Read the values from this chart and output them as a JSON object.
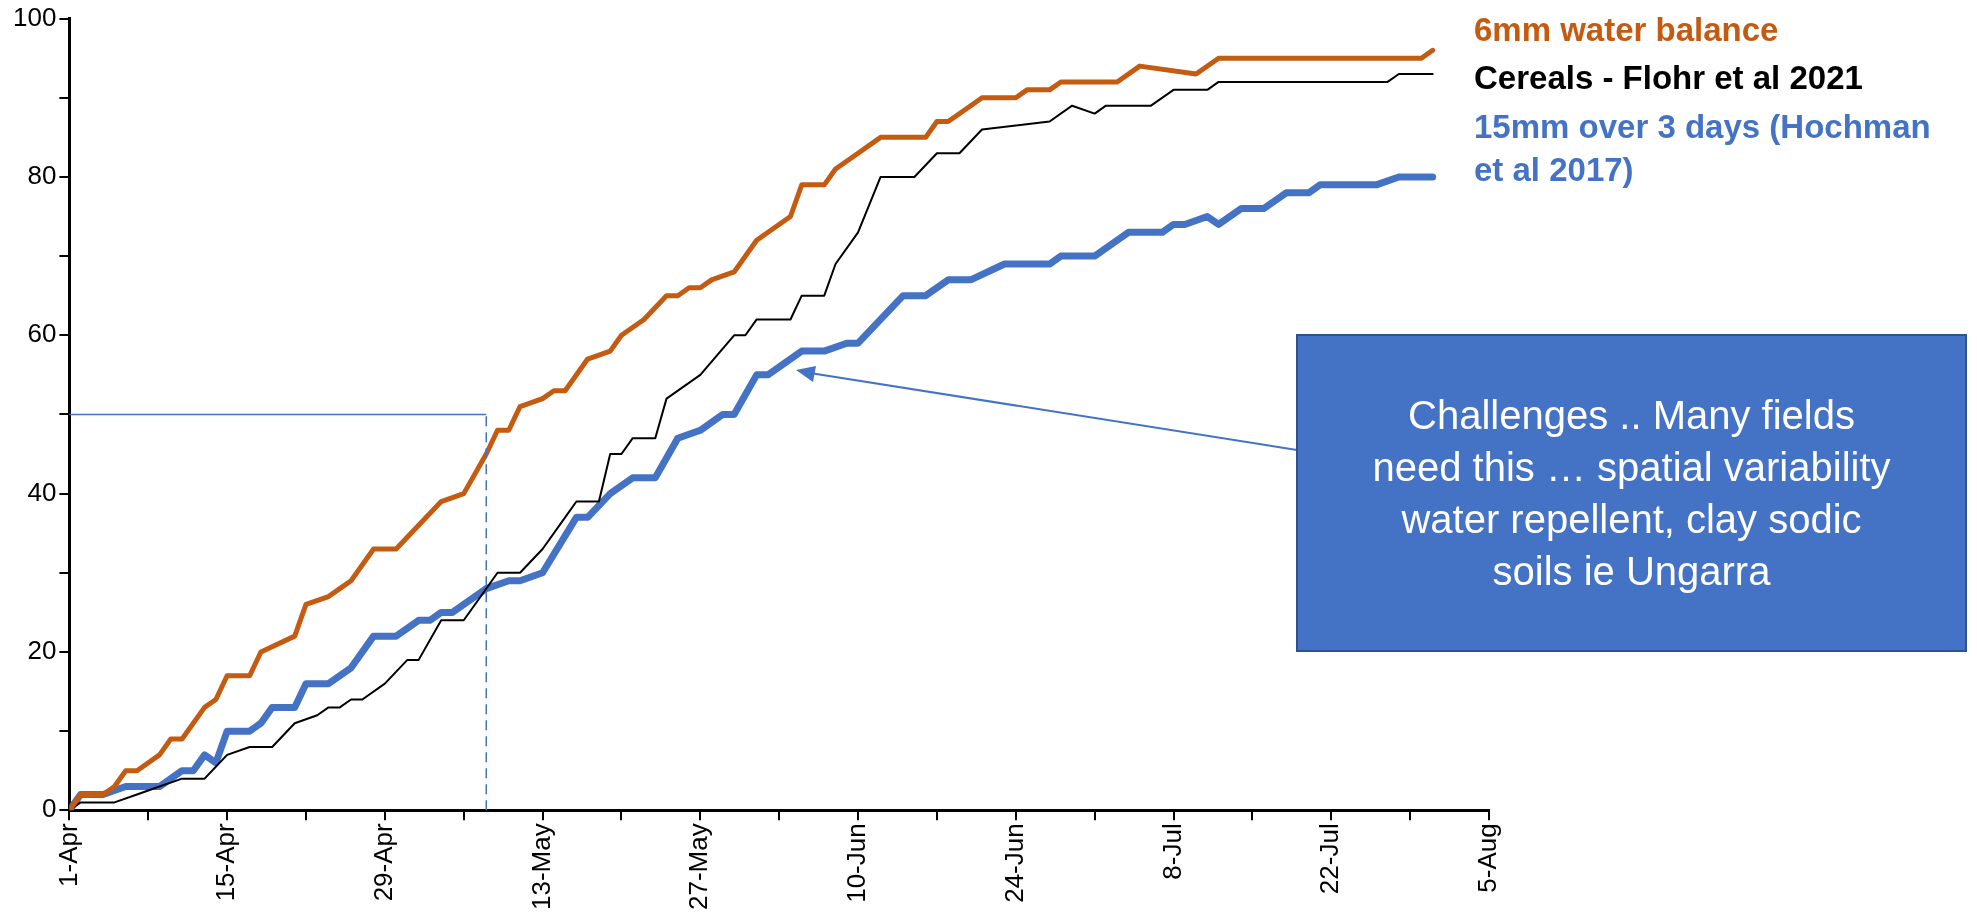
{
  "chart_data": {
    "type": "line",
    "xlim": [
      "--04-01",
      "--08-05"
    ],
    "xticks": [
      {
        "value": "--04-01",
        "label": "1-Apr"
      },
      {
        "value": "--04-08",
        "label": null
      },
      {
        "value": "--04-15",
        "label": "15-Apr"
      },
      {
        "value": "--04-22",
        "label": null
      },
      {
        "value": "--04-29",
        "label": "29-Apr"
      },
      {
        "value": "--05-06",
        "label": null
      },
      {
        "value": "--05-13",
        "label": "13-May"
      },
      {
        "value": "--05-20",
        "label": null
      },
      {
        "value": "--05-27",
        "label": "27-May"
      },
      {
        "value": "--06-03",
        "label": null
      },
      {
        "value": "--06-10",
        "label": "10-Jun"
      },
      {
        "value": "--06-17",
        "label": null
      },
      {
        "value": "--06-24",
        "label": "24-Jun"
      },
      {
        "value": "--07-01",
        "label": null
      },
      {
        "value": "--07-08",
        "label": "8-Jul"
      },
      {
        "value": "--07-15",
        "label": null
      },
      {
        "value": "--07-22",
        "label": "22-Jul"
      },
      {
        "value": "--07-29",
        "label": null
      },
      {
        "value": "--08-05",
        "label": "5-Aug"
      }
    ],
    "ylim": [
      0,
      100
    ],
    "yticks": [
      0,
      {
        "value": 10,
        "label": null
      },
      20,
      {
        "value": 30,
        "label": null
      },
      40,
      {
        "value": 50,
        "label": null
      },
      60,
      {
        "value": 70,
        "label": null
      },
      80,
      {
        "value": 90,
        "label": null
      },
      100
    ],
    "grid": false,
    "legend": "top right",
    "series": [
      {
        "name": "6mm water balance",
        "color": "#c55a11",
        "x": [
          "--04-01",
          "--04-02",
          "--04-04",
          "--04-05",
          "--04-06",
          "--04-07",
          "--04-09",
          "--04-10",
          "--04-11",
          "--04-13",
          "--04-14",
          "--04-15",
          "--04-17",
          "--04-18",
          "--04-21",
          "--04-22",
          "--04-24",
          "--04-25",
          "--04-26",
          "--04-28",
          "--04-30",
          "--05-02",
          "--05-04",
          "--05-06",
          "--05-08",
          "--05-09",
          "--05-10",
          "--05-11",
          "--05-13",
          "--05-14",
          "--05-15",
          "--05-17",
          "--05-19",
          "--05-20",
          "--05-22",
          "--05-24",
          "--05-25",
          "--05-26",
          "--05-27",
          "--05-28",
          "--05-30",
          "--06-01",
          "--06-04",
          "--06-05",
          "--06-07",
          "--06-08",
          "--06-10",
          "--06-12",
          "--06-16",
          "--06-17",
          "--06-18",
          "--06-20",
          "--06-21",
          "--06-24",
          "--06-25",
          "--06-27",
          "--06-28",
          "--07-03",
          "--07-05",
          "--07-10",
          "--07-12",
          "--07-30",
          "--07-31"
        ],
        "values": [
          0,
          2,
          2,
          3,
          5,
          5,
          7,
          9,
          9,
          13,
          14,
          17,
          17,
          20,
          22,
          26,
          27,
          28,
          29,
          33,
          33,
          36,
          39,
          40,
          45,
          48,
          48,
          51,
          52,
          53,
          53,
          57,
          58,
          60,
          62,
          65,
          65,
          66,
          66,
          67,
          68,
          72,
          75,
          79,
          79,
          81,
          83,
          85,
          85,
          87,
          87,
          89,
          90,
          90,
          91,
          91,
          92,
          92,
          94,
          93,
          95,
          95,
          96
        ]
      },
      {
        "name": "Cereals - Flohr et al 2021",
        "color": "#000000",
        "x": [
          "--04-01",
          "--04-02",
          "--04-05",
          "--04-07",
          "--04-09",
          "--04-11",
          "--04-13",
          "--04-15",
          "--04-17",
          "--04-19",
          "--04-21",
          "--04-23",
          "--04-24",
          "--04-25",
          "--04-26",
          "--04-27",
          "--04-29",
          "--05-01",
          "--05-02",
          "--05-04",
          "--05-06",
          "--05-07",
          "--05-09",
          "--05-11",
          "--05-13",
          "--05-15",
          "--05-16",
          "--05-18",
          "--05-19",
          "--05-20",
          "--05-21",
          "--05-23",
          "--05-24",
          "--05-27",
          "--05-30",
          "--05-31",
          "--06-01",
          "--06-04",
          "--06-05",
          "--06-07",
          "--06-08",
          "--06-10",
          "--06-12",
          "--06-15",
          "--06-17",
          "--06-19",
          "--06-21",
          "--06-27",
          "--06-29",
          "--07-01",
          "--07-02",
          "--07-06",
          "--07-08",
          "--07-11",
          "--07-12",
          "--07-27",
          "--07-28",
          "--07-31"
        ],
        "values": [
          0,
          1,
          1,
          2,
          3,
          4,
          4,
          7,
          8,
          8,
          11,
          12,
          13,
          13,
          14,
          14,
          16,
          19,
          19,
          24,
          24,
          26,
          30,
          30,
          33,
          37,
          39,
          39,
          45,
          45,
          47,
          47,
          52,
          55,
          60,
          60,
          62,
          62,
          65,
          65,
          69,
          73,
          80,
          80,
          83,
          83,
          86,
          87,
          89,
          88,
          89,
          89,
          91,
          91,
          92,
          92,
          93,
          93
        ]
      },
      {
        "name": "15mm over 3 days (Hochman et al 2017)",
        "color": "#4472c4",
        "x": [
          "--04-01",
          "--04-02",
          "--04-04",
          "--04-06",
          "--04-09",
          "--04-11",
          "--04-12",
          "--04-13",
          "--04-14",
          "--04-15",
          "--04-17",
          "--04-18",
          "--04-19",
          "--04-21",
          "--04-22",
          "--04-24",
          "--04-26",
          "--04-28",
          "--04-30",
          "--05-02",
          "--05-03",
          "--05-04",
          "--05-05",
          "--05-08",
          "--05-10",
          "--05-11",
          "--05-13",
          "--05-16",
          "--05-17",
          "--05-19",
          "--05-21",
          "--05-23",
          "--05-25",
          "--05-27",
          "--05-29",
          "--05-30",
          "--06-01",
          "--06-02",
          "--06-05",
          "--06-07",
          "--06-09",
          "--06-10",
          "--06-12",
          "--06-14",
          "--06-16",
          "--06-18",
          "--06-20",
          "--06-23",
          "--06-27",
          "--06-28",
          "--07-01",
          "--07-04",
          "--07-07",
          "--07-08",
          "--07-09",
          "--07-11",
          "--07-12",
          "--07-14",
          "--07-16",
          "--07-18",
          "--07-20",
          "--07-21",
          "--07-26",
          "--07-28",
          "--07-31"
        ],
        "values": [
          0,
          2,
          2,
          3,
          3,
          5,
          5,
          7,
          6,
          10,
          10,
          11,
          13,
          13,
          16,
          16,
          18,
          22,
          22,
          24,
          24,
          25,
          25,
          28,
          29,
          29,
          30,
          37,
          37,
          40,
          42,
          42,
          47,
          48,
          50,
          50,
          55,
          55,
          58,
          58,
          59,
          59,
          62,
          65,
          65,
          67,
          67,
          69,
          69,
          70,
          70,
          73,
          73,
          74,
          74,
          75,
          74,
          76,
          76,
          78,
          78,
          79,
          79,
          80,
          80
        ]
      }
    ],
    "ref_lines": [
      {
        "axis": "y",
        "value": 50,
        "color": "#4472c4",
        "line_style": "solid"
      },
      {
        "axis": "x",
        "value": "--05-08",
        "color": "#4472c4",
        "line_style": "dashed"
      }
    ],
    "annotations": [
      "Challenges .. Many fields need this …  spatial variability water repellent, clay sodic soils ie Ungarra"
    ]
  }
}
